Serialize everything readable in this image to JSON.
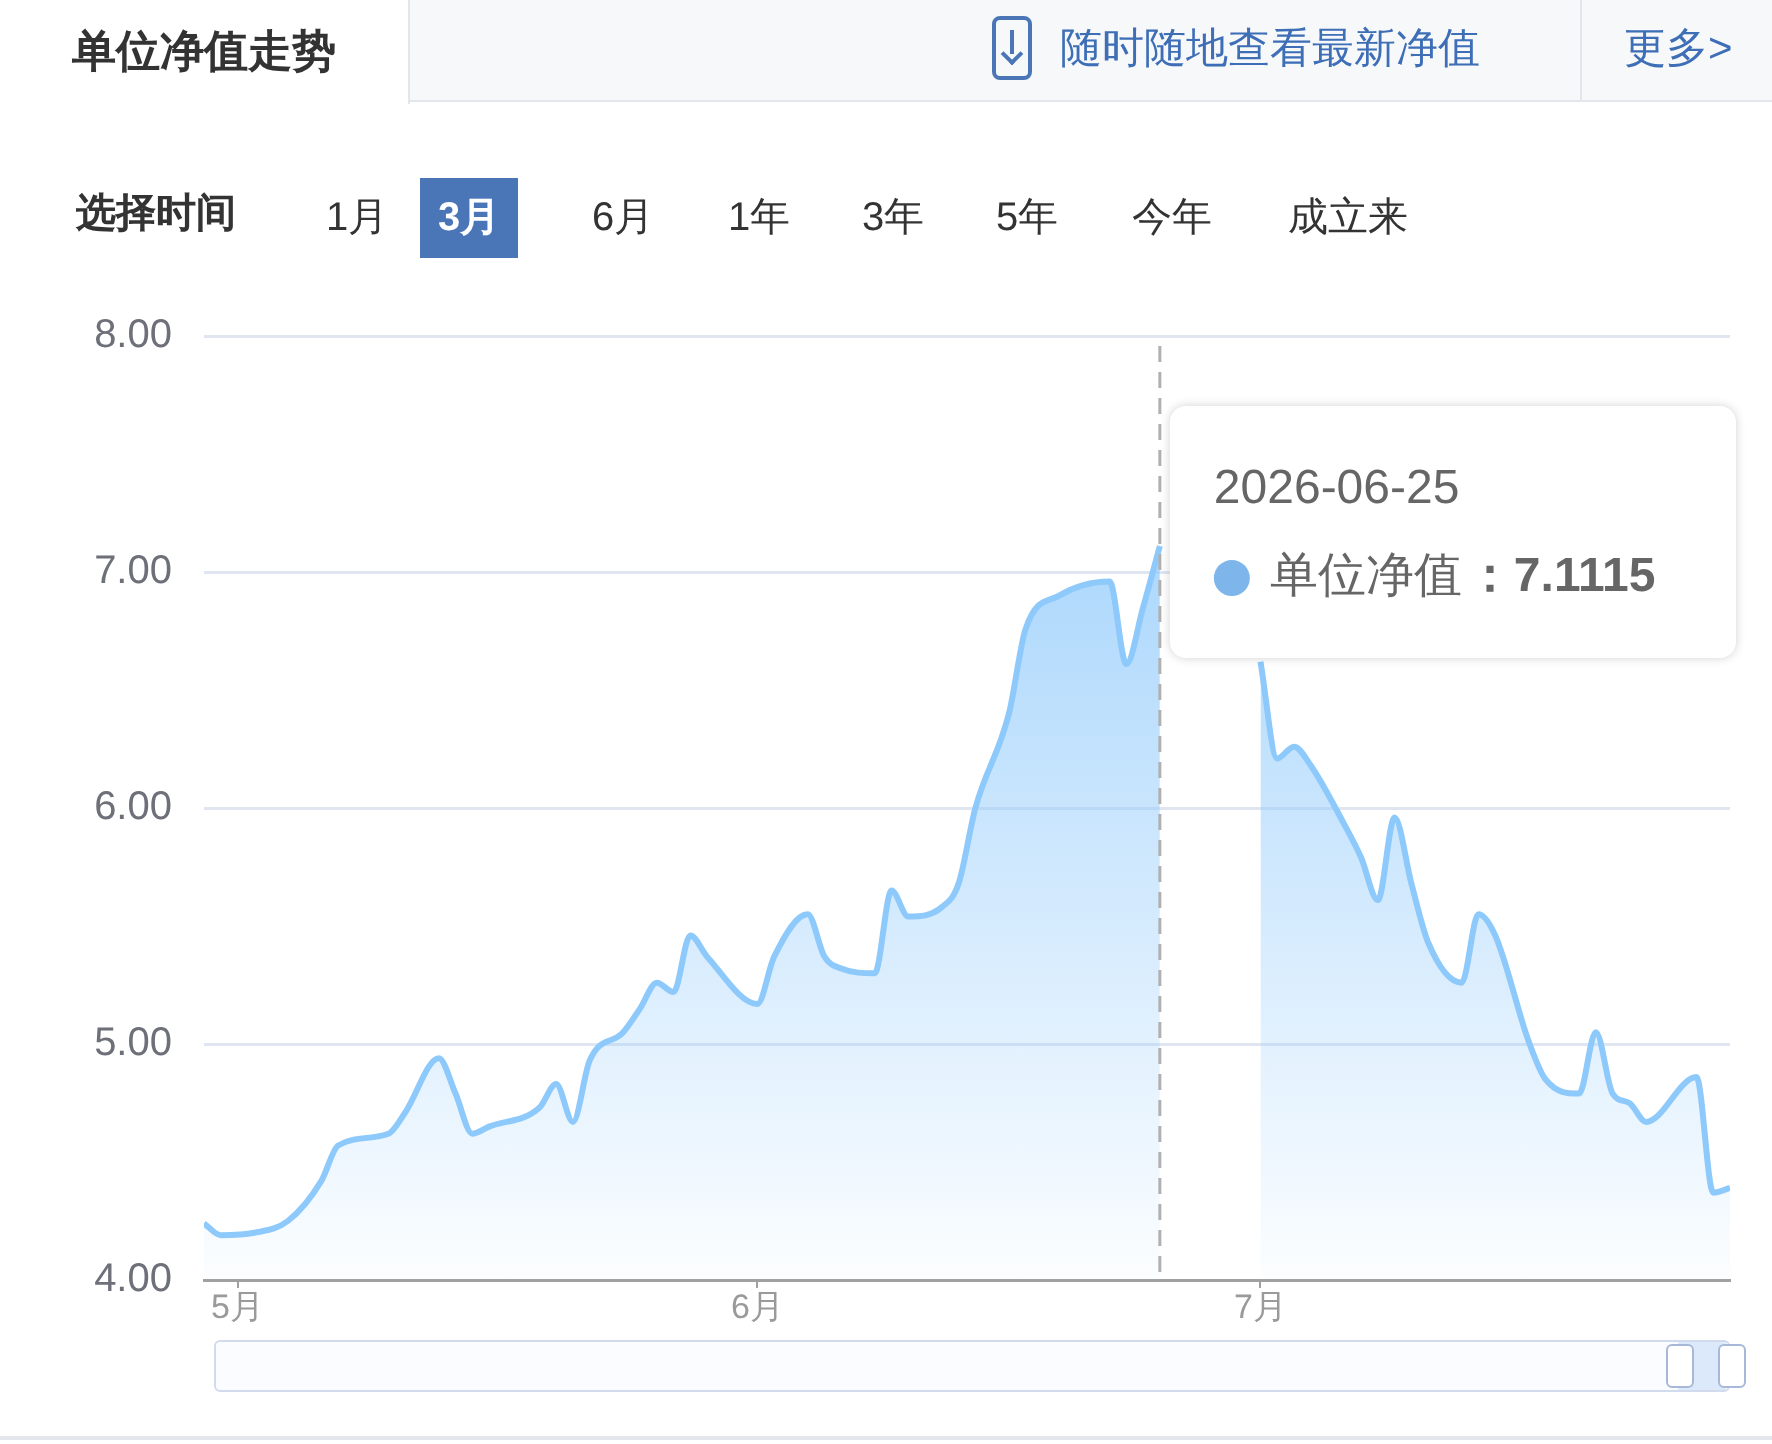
{
  "chart_data": {
    "type": "area",
    "title": "单位净值走势",
    "x": [
      "2026-04-29",
      "2026-04-30",
      "2026-05-02",
      "2026-05-04",
      "2026-05-06",
      "2026-05-07",
      "2026-05-10",
      "2026-05-11",
      "2026-05-13",
      "2026-05-14",
      "2026-05-15",
      "2026-05-16",
      "2026-05-19",
      "2026-05-20",
      "2026-05-21",
      "2026-05-22",
      "2026-05-24",
      "2026-05-25",
      "2026-05-26",
      "2026-05-27",
      "2026-05-28",
      "2026-05-29",
      "2026-06-01",
      "2026-06-02",
      "2026-06-04",
      "2026-06-05",
      "2026-06-06",
      "2026-06-08",
      "2026-06-09",
      "2026-06-10",
      "2026-06-12",
      "2026-06-13",
      "2026-06-14",
      "2026-06-16",
      "2026-06-17",
      "2026-06-19",
      "2026-06-22",
      "2026-06-23",
      "2026-06-24",
      "2026-06-25",
      "2026-06-28",
      "2026-07-01",
      "2026-07-02",
      "2026-07-03",
      "2026-07-04",
      "2026-07-06",
      "2026-07-07",
      "2026-07-08",
      "2026-07-09",
      "2026-07-10",
      "2026-07-11",
      "2026-07-13",
      "2026-07-14",
      "2026-07-15",
      "2026-07-17",
      "2026-07-18",
      "2026-07-20",
      "2026-07-21",
      "2026-07-22",
      "2026-07-23",
      "2026-07-24",
      "2026-07-27",
      "2026-07-28",
      "2026-07-29"
    ],
    "series": [
      {
        "name": "单位净值",
        "color": "#8ec9fb",
        "values": [
          4.24,
          4.19,
          4.2,
          4.25,
          4.42,
          4.57,
          4.62,
          4.71,
          4.94,
          4.79,
          4.62,
          4.65,
          4.73,
          4.83,
          4.67,
          4.93,
          5.05,
          5.15,
          5.26,
          5.22,
          5.46,
          5.37,
          5.17,
          5.37,
          5.55,
          5.37,
          5.32,
          5.3,
          5.65,
          5.54,
          5.58,
          5.68,
          6.0,
          6.4,
          6.76,
          6.9,
          6.96,
          6.61,
          6.85,
          7.11,
          null,
          6.62,
          6.21,
          6.26,
          6.18,
          5.93,
          5.79,
          5.61,
          5.96,
          5.68,
          5.43,
          5.26,
          5.55,
          5.46,
          5.01,
          4.85,
          4.79,
          5.05,
          4.79,
          4.75,
          4.67,
          4.86,
          4.37,
          4.39
        ]
      }
    ],
    "xlim": [
      "2026-04-29",
      "2026-07-29"
    ],
    "xticks": [
      {
        "value": "2026-05-01",
        "label": "5月"
      },
      {
        "value": "2026-06-01",
        "label": "6月"
      },
      {
        "value": "2026-07-01",
        "label": "7月"
      }
    ],
    "ylim": [
      4,
      8
    ],
    "yticks": [
      {
        "value": 4,
        "label": "4.00"
      },
      {
        "value": 5,
        "label": "5.00"
      },
      {
        "value": 6,
        "label": "6.00"
      },
      {
        "value": 7,
        "label": "7.00"
      },
      {
        "value": 8,
        "label": "8.00"
      }
    ],
    "grid": "y",
    "legend": "top right",
    "marker": "none",
    "line_style": "solid",
    "ref_lines": [
      {
        "axis": "x",
        "value": "2026-06-25",
        "color": "#b0b0b0",
        "line_style": "dashed"
      }
    ],
    "annotations": [
      "随时随地查看最新净值",
      "更多>",
      "选择时间",
      "1月",
      "3月",
      "6月",
      "1年",
      "3年",
      "5年",
      "今年",
      "成立来",
      "：7.1115",
      {
        "text": "2026-06-25",
        "x": "2026-06-25",
        "y": 7.11
      }
    ]
  }
}
